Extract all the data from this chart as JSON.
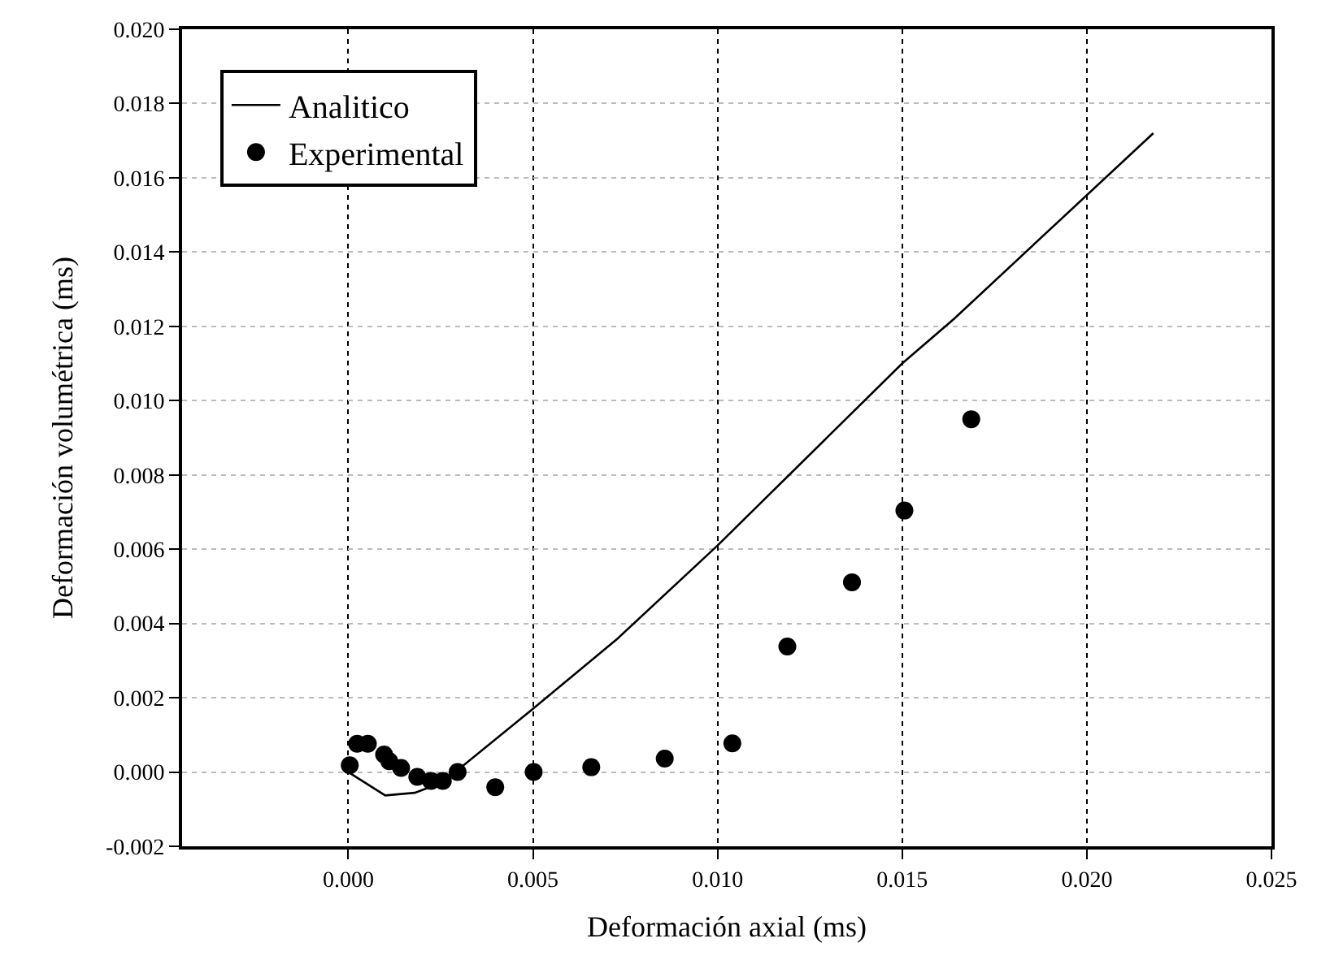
{
  "chart_data": {
    "type": "scatter",
    "xlabel": "Deformación axial (ms)",
    "ylabel": "Deformación volumétrica (ms)",
    "xlim": [
      -0.0045,
      0.025
    ],
    "xticks": [
      {
        "value": 0,
        "label": "0.000"
      },
      {
        "value": 0.005,
        "label": "0.005"
      },
      {
        "value": 0.01,
        "label": "0.010"
      },
      {
        "value": 0.015,
        "label": "0.015"
      },
      {
        "value": 0.02,
        "label": "0.020"
      },
      {
        "value": 0.025,
        "label": "0.025"
      }
    ],
    "ylim": [
      -0.002,
      0.02
    ],
    "yticks": [
      {
        "value": -0.002,
        "label": "-0.002"
      },
      {
        "value": 0,
        "label": "0.000"
      },
      {
        "value": 0.002,
        "label": "0.002"
      },
      {
        "value": 0.004,
        "label": "0.004"
      },
      {
        "value": 0.006,
        "label": "0.006"
      },
      {
        "value": 0.008,
        "label": "0.008"
      },
      {
        "value": 0.01,
        "label": "0.010"
      },
      {
        "value": 0.012,
        "label": "0.012"
      },
      {
        "value": 0.014,
        "label": "0.014"
      },
      {
        "value": 0.016,
        "label": "0.016"
      },
      {
        "value": 0.018,
        "label": "0.018"
      },
      {
        "value": 0.02,
        "label": "0.020"
      }
    ],
    "grid": true,
    "legend": "top left",
    "series": [
      {
        "name": "Analitico",
        "type": "line",
        "color": "#000000",
        "marker": "none",
        "line_style": "solid",
        "x": [
          0.0,
          0.001,
          0.0018,
          0.0022,
          0.0029,
          0.005,
          0.0073,
          0.01,
          0.015,
          0.0164,
          0.0218
        ],
        "values": [
          0.0,
          -0.00063,
          -0.00056,
          -0.00041,
          0.0,
          0.0017,
          0.0036,
          0.0061,
          0.011,
          0.0122,
          0.0172
        ]
      },
      {
        "name": "Experimental",
        "color": "#000000",
        "marker": "circle",
        "x": [
          4e-05,
          0.00024,
          0.00053,
          0.00097,
          0.00111,
          0.00143,
          0.00187,
          0.00224,
          0.00256,
          0.00296,
          0.00398,
          0.00502,
          0.00658,
          0.00857,
          0.0104,
          0.01189,
          0.01364,
          0.01506,
          0.01687
        ],
        "values": [
          0.00018,
          0.00076,
          0.00076,
          0.00047,
          0.00029,
          0.00011,
          -0.00013,
          -0.00024,
          -0.00024,
          0.0,
          -0.00041,
          0.0,
          0.00013,
          0.00036,
          0.00077,
          0.00338,
          0.00511,
          0.00704,
          0.0095
        ]
      }
    ]
  }
}
